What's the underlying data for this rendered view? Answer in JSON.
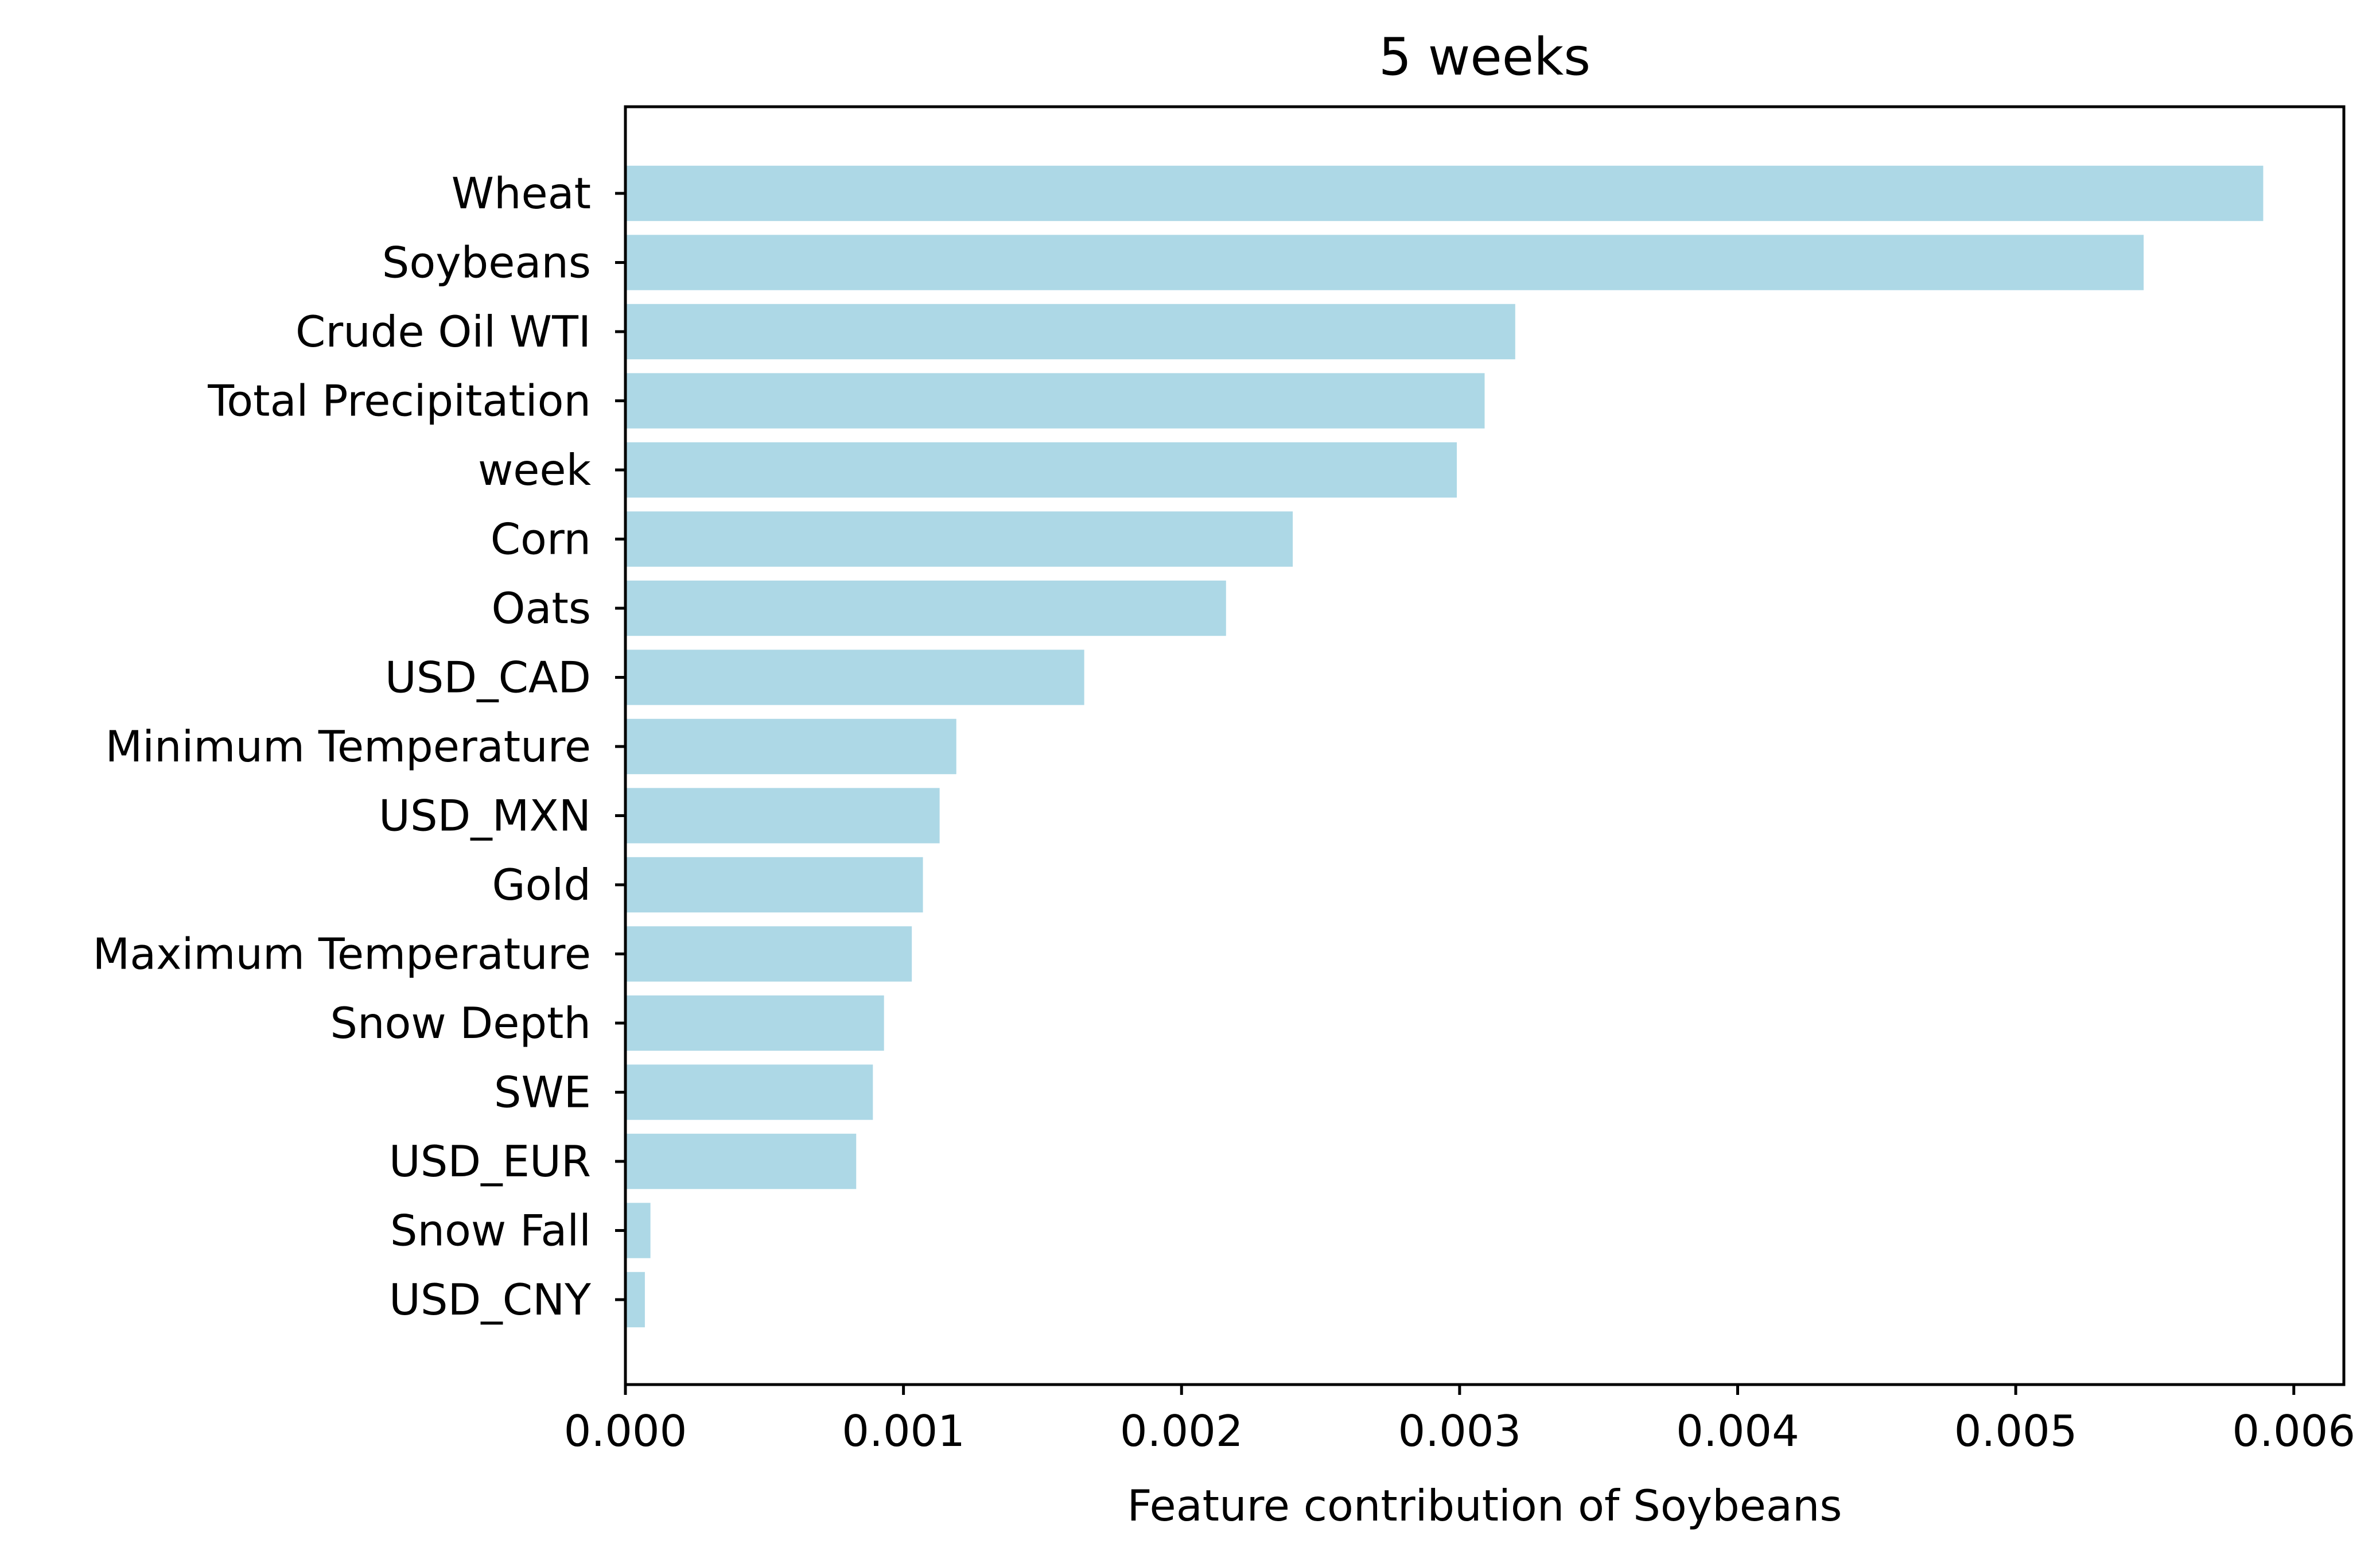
{
  "chart_data": {
    "type": "bar",
    "orientation": "horizontal",
    "title": "5 weeks",
    "xlabel": "Feature contribution of Soybeans",
    "ylabel": "",
    "xlim": [
      0,
      0.00618
    ],
    "xticks": [
      0.0,
      0.001,
      0.002,
      0.003,
      0.004,
      0.005,
      0.006
    ],
    "xtick_labels": [
      "0.000",
      "0.001",
      "0.002",
      "0.003",
      "0.004",
      "0.005",
      "0.006"
    ],
    "grid": false,
    "legend": "none",
    "bar_color": "#add8e6",
    "categories": [
      "Wheat",
      "Soybeans",
      "Crude Oil WTI",
      "Total Precipitation",
      "week",
      "Corn",
      "Oats",
      "USD_CAD",
      "Minimum Temperature",
      "USD_MXN",
      "Gold",
      "Maximum Temperature",
      "Snow Depth",
      "SWE",
      "USD_EUR",
      "Snow Fall",
      "USD_CNY"
    ],
    "values": [
      0.00589,
      0.00546,
      0.0032,
      0.00309,
      0.00299,
      0.0024,
      0.00216,
      0.00165,
      0.00119,
      0.00113,
      0.00107,
      0.00103,
      0.00093,
      0.00089,
      0.00083,
      9e-05,
      7e-05
    ]
  }
}
